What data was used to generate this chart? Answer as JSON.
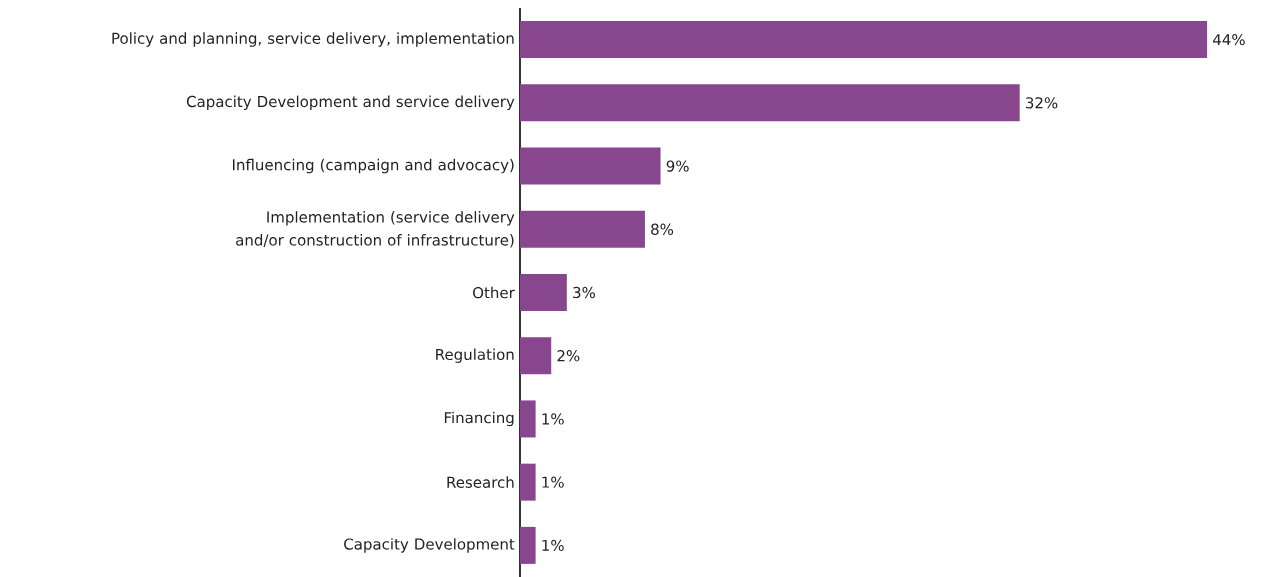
{
  "chart_data": {
    "type": "bar",
    "orientation": "horizontal",
    "color": "#88468f",
    "categories": [
      "Policy and planning, service delivery, implementation",
      "Capacity Development and service delivery",
      "Influencing (campaign and advocacy)",
      "Implementation (service delivery and/or construction of infrastructure)",
      "Other",
      "Regulation",
      "Financing",
      "Research",
      "Capacity Development"
    ],
    "values": [
      44,
      32,
      9,
      8,
      3,
      2,
      1,
      1,
      1
    ],
    "value_labels": [
      "44%",
      "32%",
      "9%",
      "8%",
      "3%",
      "2%",
      "1%",
      "1%",
      "1%"
    ]
  }
}
